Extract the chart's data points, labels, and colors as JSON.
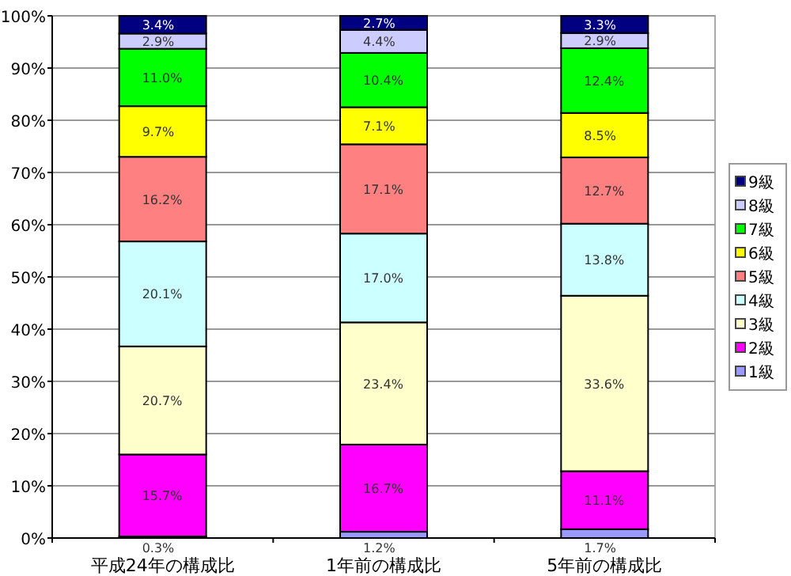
{
  "chart_data": {
    "type": "bar",
    "stacked": true,
    "categories": [
      "平成24年の構成比",
      "1年前の構成比",
      "5年前の構成比"
    ],
    "series": [
      {
        "name": "1級",
        "color": "#9999ff",
        "values": [
          0.3,
          1.2,
          1.7
        ],
        "value_labels": [
          "0.3%",
          "1.2%",
          "1.7%"
        ]
      },
      {
        "name": "2級",
        "color": "#ff00ff",
        "values": [
          15.7,
          16.7,
          11.1
        ],
        "value_labels": [
          "15.7%",
          "16.7%",
          "11.1%"
        ]
      },
      {
        "name": "3級",
        "color": "#ffffcc",
        "values": [
          20.7,
          23.4,
          33.6
        ],
        "value_labels": [
          "20.7%",
          "23.4%",
          "33.6%"
        ]
      },
      {
        "name": "4級",
        "color": "#ccffff",
        "values": [
          20.1,
          17.0,
          13.8
        ],
        "value_labels": [
          "20.1%",
          "17.0%",
          "13.8%"
        ]
      },
      {
        "name": "5級",
        "color": "#ff8080",
        "values": [
          16.2,
          17.1,
          12.7
        ],
        "value_labels": [
          "16.2%",
          "17.1%",
          "12.7%"
        ]
      },
      {
        "name": "6級",
        "color": "#ffff00",
        "values": [
          9.7,
          7.1,
          8.5
        ],
        "value_labels": [
          "9.7%",
          "7.1%",
          "8.5%"
        ]
      },
      {
        "name": "7級",
        "color": "#00ff00",
        "values": [
          11.0,
          10.4,
          12.4
        ],
        "value_labels": [
          "11.0%",
          "10.4%",
          "12.4%"
        ]
      },
      {
        "name": "8級",
        "color": "#ccccff",
        "values": [
          2.9,
          4.4,
          2.9
        ],
        "value_labels": [
          "2.9%",
          "4.4%",
          "2.9%"
        ]
      },
      {
        "name": "9級",
        "color": "#000080",
        "values": [
          3.4,
          2.7,
          3.3
        ],
        "value_labels": [
          "3.4%",
          "2.7%",
          "3.3%"
        ]
      }
    ],
    "ylim": [
      0,
      100
    ],
    "yticks": [
      {
        "value": 0,
        "label": "0%"
      },
      {
        "value": 10,
        "label": "10%"
      },
      {
        "value": 20,
        "label": "20%"
      },
      {
        "value": 30,
        "label": "30%"
      },
      {
        "value": 40,
        "label": "40%"
      },
      {
        "value": 50,
        "label": "50%"
      },
      {
        "value": 60,
        "label": "60%"
      },
      {
        "value": 70,
        "label": "70%"
      },
      {
        "value": 80,
        "label": "80%"
      },
      {
        "value": 90,
        "label": "90%"
      },
      {
        "value": 100,
        "label": "100%"
      }
    ],
    "grid": "y",
    "legend": "right"
  }
}
